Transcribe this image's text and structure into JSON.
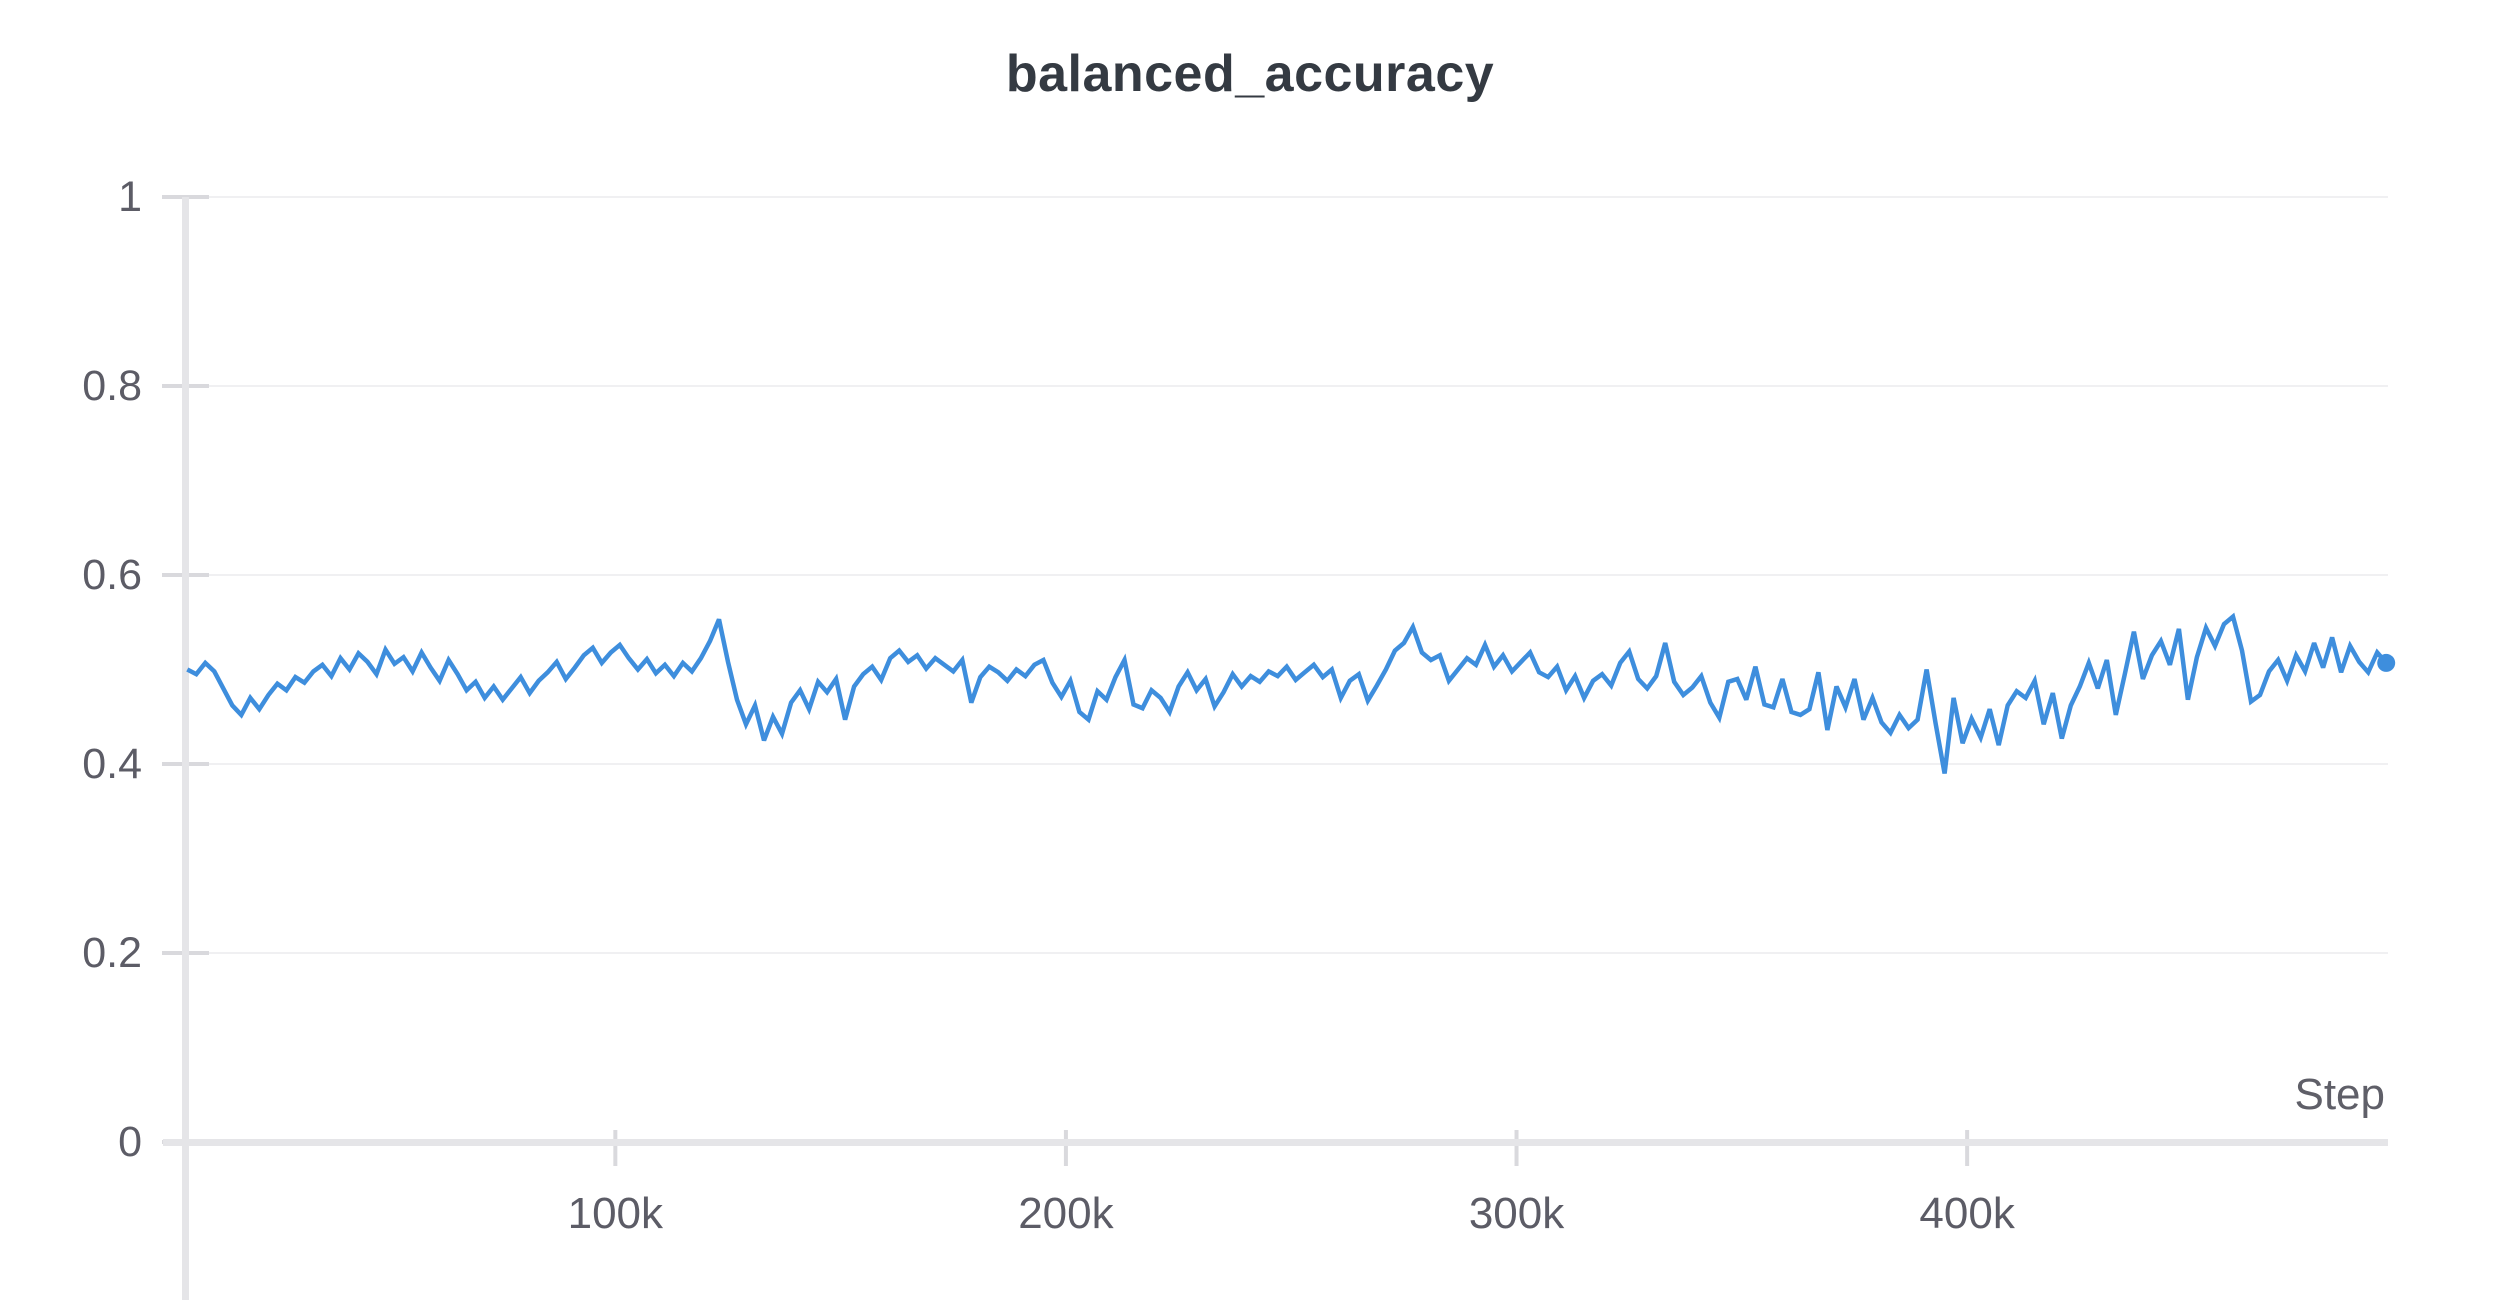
{
  "page": {
    "background": "#ffffff"
  },
  "chart_data": {
    "type": "line",
    "title": "balanced_accuracy",
    "xlabel": "Step",
    "ylabel": "",
    "ylim": [
      0,
      1
    ],
    "xlim": [
      4500,
      493400
    ],
    "grid": "horizontal",
    "legend": "none",
    "end_marker": "dot",
    "colors": {
      "line": "#3e8edd",
      "gridline": "#f0f0f2",
      "axis": "#e5e5e8",
      "tick": "#d9d9dd",
      "title_text": "#343a42",
      "label_text": "#5c5c66"
    },
    "y_ticks": [
      {
        "label": "0",
        "value": 0
      },
      {
        "label": "0.2",
        "value": 0.2
      },
      {
        "label": "0.4",
        "value": 0.4
      },
      {
        "label": "0.6",
        "value": 0.6
      },
      {
        "label": "0.8",
        "value": 0.8
      },
      {
        "label": "1",
        "value": 1
      }
    ],
    "x_ticks": [
      {
        "label": "100k",
        "value": 100000
      },
      {
        "label": "200k",
        "value": 200000
      },
      {
        "label": "300k",
        "value": 300000
      },
      {
        "label": "400k",
        "value": 400000
      }
    ],
    "x_start": 5000,
    "x_step": 2000,
    "series": [
      {
        "name": "balanced_accuracy",
        "color": "#3e8edd",
        "values": [
          0.5,
          0.495,
          0.507,
          0.498,
          0.48,
          0.462,
          0.452,
          0.47,
          0.458,
          0.473,
          0.485,
          0.478,
          0.492,
          0.486,
          0.498,
          0.505,
          0.493,
          0.512,
          0.5,
          0.517,
          0.508,
          0.495,
          0.521,
          0.506,
          0.513,
          0.498,
          0.518,
          0.502,
          0.488,
          0.51,
          0.495,
          0.478,
          0.487,
          0.47,
          0.482,
          0.468,
          0.48,
          0.492,
          0.475,
          0.488,
          0.497,
          0.508,
          0.49,
          0.502,
          0.515,
          0.523,
          0.507,
          0.518,
          0.526,
          0.512,
          0.5,
          0.511,
          0.496,
          0.505,
          0.493,
          0.507,
          0.498,
          0.512,
          0.53,
          0.553,
          0.508,
          0.468,
          0.442,
          0.462,
          0.425,
          0.45,
          0.432,
          0.465,
          0.478,
          0.458,
          0.487,
          0.476,
          0.49,
          0.447,
          0.482,
          0.495,
          0.503,
          0.489,
          0.512,
          0.52,
          0.508,
          0.515,
          0.501,
          0.512,
          0.505,
          0.498,
          0.51,
          0.465,
          0.492,
          0.503,
          0.497,
          0.488,
          0.5,
          0.493,
          0.505,
          0.51,
          0.486,
          0.471,
          0.488,
          0.455,
          0.447,
          0.477,
          0.468,
          0.492,
          0.51,
          0.463,
          0.459,
          0.478,
          0.47,
          0.455,
          0.482,
          0.497,
          0.478,
          0.49,
          0.461,
          0.476,
          0.495,
          0.482,
          0.493,
          0.487,
          0.498,
          0.493,
          0.503,
          0.489,
          0.497,
          0.505,
          0.492,
          0.5,
          0.47,
          0.488,
          0.495,
          0.467,
          0.483,
          0.5,
          0.52,
          0.528,
          0.545,
          0.518,
          0.51,
          0.515,
          0.488,
          0.5,
          0.512,
          0.505,
          0.526,
          0.503,
          0.515,
          0.498,
          0.508,
          0.518,
          0.497,
          0.492,
          0.503,
          0.478,
          0.493,
          0.47,
          0.488,
          0.495,
          0.483,
          0.507,
          0.519,
          0.49,
          0.48,
          0.493,
          0.528,
          0.487,
          0.473,
          0.481,
          0.493,
          0.465,
          0.449,
          0.487,
          0.49,
          0.468,
          0.503,
          0.463,
          0.46,
          0.49,
          0.455,
          0.452,
          0.458,
          0.497,
          0.436,
          0.482,
          0.46,
          0.49,
          0.447,
          0.47,
          0.444,
          0.433,
          0.452,
          0.438,
          0.447,
          0.5,
          0.443,
          0.39,
          0.47,
          0.422,
          0.448,
          0.428,
          0.458,
          0.42,
          0.462,
          0.477,
          0.47,
          0.488,
          0.442,
          0.475,
          0.427,
          0.462,
          0.482,
          0.507,
          0.48,
          0.51,
          0.452,
          0.495,
          0.54,
          0.49,
          0.515,
          0.53,
          0.505,
          0.543,
          0.468,
          0.513,
          0.544,
          0.525,
          0.548,
          0.556,
          0.52,
          0.466,
          0.473,
          0.498,
          0.51,
          0.488,
          0.515,
          0.498,
          0.528,
          0.502,
          0.534,
          0.497,
          0.525,
          0.508,
          0.497,
          0.518,
          0.507
        ]
      }
    ]
  }
}
